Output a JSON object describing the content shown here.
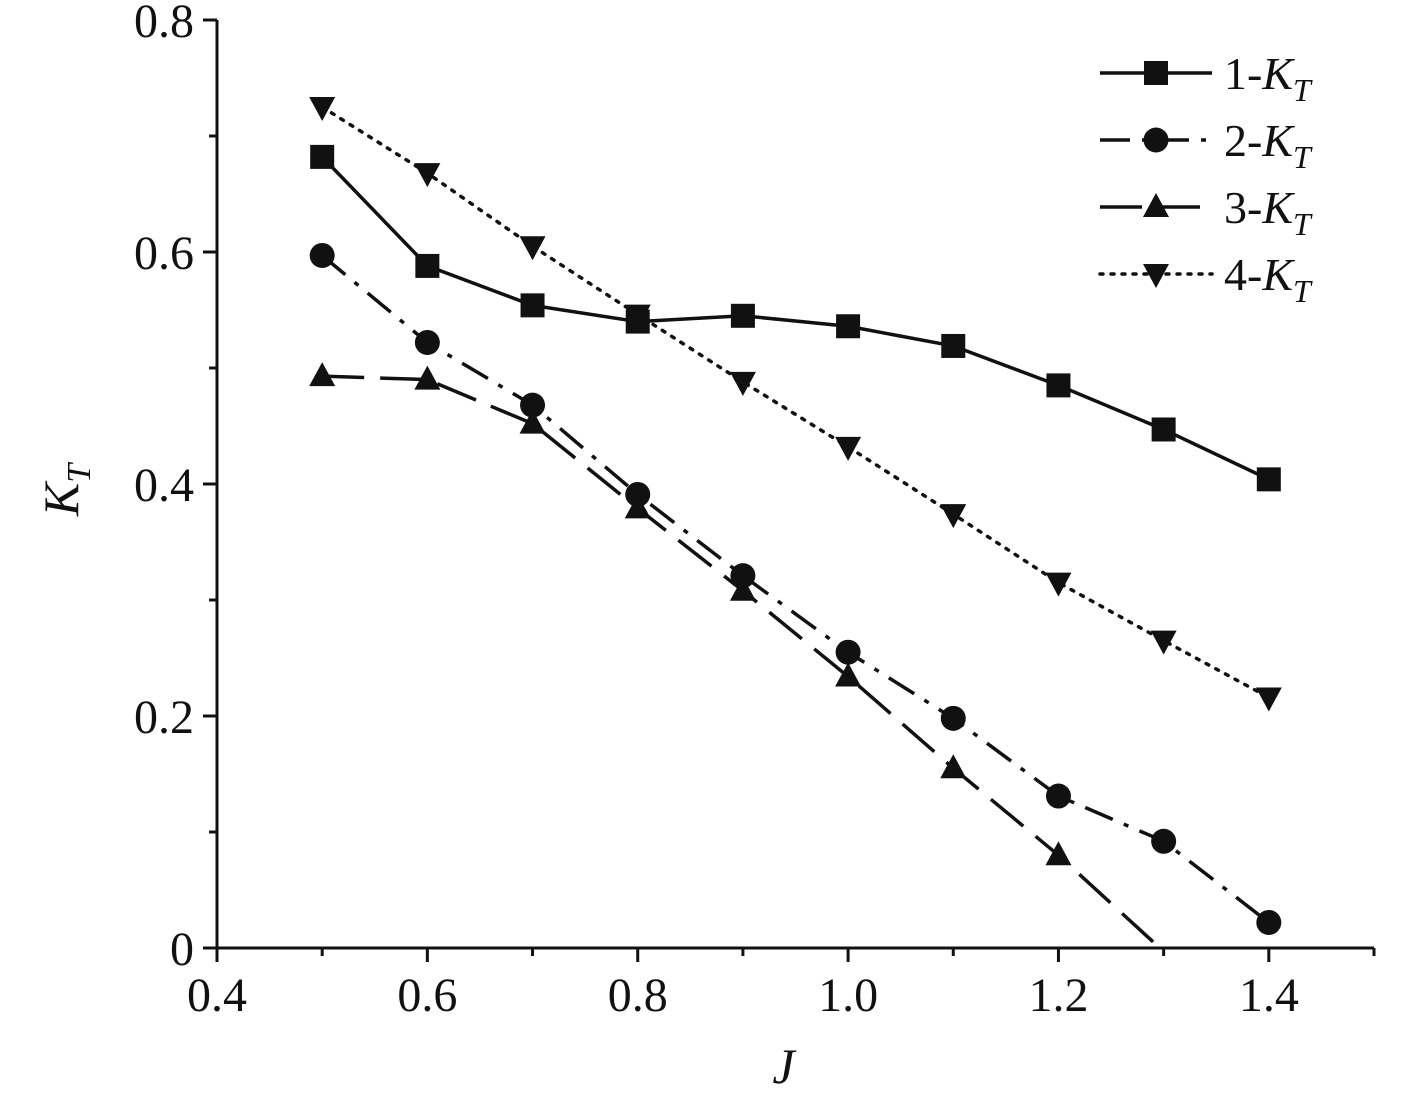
{
  "chart_data": {
    "type": "line",
    "xlabel": "J",
    "ylabel": {
      "base": "K",
      "sub": "T"
    },
    "xlim": [
      0.4,
      1.5
    ],
    "ylim": [
      0,
      0.8
    ],
    "x_ticks": [
      {
        "value": 0.4,
        "label": "0.4"
      },
      {
        "value": 0.6,
        "label": "0.6"
      },
      {
        "value": 0.8,
        "label": "0.8"
      },
      {
        "value": 1.0,
        "label": "1.0"
      },
      {
        "value": 1.2,
        "label": "1.2"
      },
      {
        "value": 1.4,
        "label": "1.4"
      }
    ],
    "x_minor_ticks": [
      0.5,
      0.7,
      0.9,
      1.1,
      1.3,
      1.5
    ],
    "y_ticks": [
      {
        "value": 0,
        "label": "0"
      },
      {
        "value": 0.2,
        "label": "0.2"
      },
      {
        "value": 0.4,
        "label": "0.4"
      },
      {
        "value": 0.6,
        "label": "0.6"
      },
      {
        "value": 0.8,
        "label": "0.8"
      }
    ],
    "y_minor_ticks": [
      0.1,
      0.3,
      0.5,
      0.7
    ],
    "grid": false,
    "legend_position": "top-right",
    "x": [
      0.5,
      0.6,
      0.7,
      0.8,
      0.9,
      1.0,
      1.1,
      1.2,
      1.3,
      1.4
    ],
    "series": [
      {
        "name": "1-K",
        "name_sub": "T",
        "line_style": "solid",
        "marker": "square",
        "color": "#111111",
        "values": [
          0.682,
          0.588,
          0.554,
          0.54,
          0.545,
          0.536,
          0.519,
          0.485,
          0.447,
          0.404
        ]
      },
      {
        "name": "2-K",
        "name_sub": "T",
        "line_style": "dash-dot",
        "marker": "circle",
        "color": "#111111",
        "values": [
          0.597,
          0.522,
          0.468,
          0.391,
          0.321,
          0.255,
          0.198,
          0.131,
          0.092,
          0.022
        ]
      },
      {
        "name": "3-K",
        "name_sub": "T",
        "line_style": "dashed",
        "marker": "triangle-up",
        "color": "#111111",
        "values": [
          0.493,
          0.49,
          0.452,
          0.379,
          0.308,
          0.234,
          0.155,
          0.08,
          -0.003,
          null
        ]
      },
      {
        "name": "4-K",
        "name_sub": "T",
        "line_style": "dotted",
        "marker": "triangle-down",
        "color": "#111111",
        "values": [
          0.725,
          0.668,
          0.605,
          0.546,
          0.488,
          0.432,
          0.374,
          0.315,
          0.265,
          0.216
        ]
      }
    ]
  }
}
